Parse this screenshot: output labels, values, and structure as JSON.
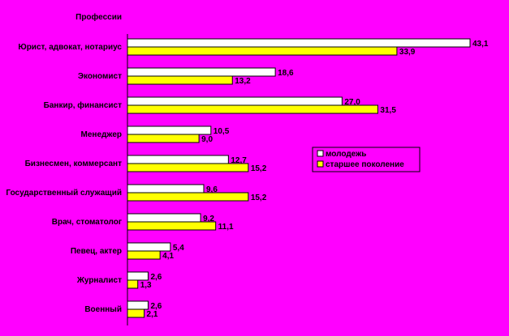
{
  "chart_data": {
    "type": "bar",
    "orientation": "horizontal",
    "title": "",
    "category_axis_title": "Профессии",
    "xlabel": "",
    "ylabel": "",
    "xlim": [
      0,
      43.1
    ],
    "grid": false,
    "legend_position": "right",
    "categories": [
      "Юрист, адвокат, нотариус",
      "Экономист",
      "Банкир, финансист",
      "Менеджер",
      "Бизнесмен, коммерсант",
      "Государственный служащий",
      "Врач, стоматолог",
      "Певец, актер",
      "Журналист",
      "Военный"
    ],
    "series": [
      {
        "name": "молодежь",
        "color": "#ffffff",
        "values": [
          43.1,
          18.6,
          27.0,
          10.5,
          12.7,
          9.6,
          9.2,
          5.4,
          2.6,
          2.6
        ],
        "labels": [
          "43,1",
          "18,6",
          "27,0",
          "10,5",
          "12,7",
          "9,6",
          "9,2",
          "5,4",
          "2,6",
          "2,6"
        ]
      },
      {
        "name": "старшее поколение",
        "color": "#ffff00",
        "values": [
          33.9,
          13.2,
          31.5,
          9.0,
          15.2,
          15.2,
          11.1,
          4.1,
          1.3,
          2.1
        ],
        "labels": [
          "33,9",
          "13,2",
          "31,5",
          "9,0",
          "15,2",
          "15,2",
          "11,1",
          "4,1",
          "1,3",
          "2,1"
        ]
      }
    ]
  }
}
